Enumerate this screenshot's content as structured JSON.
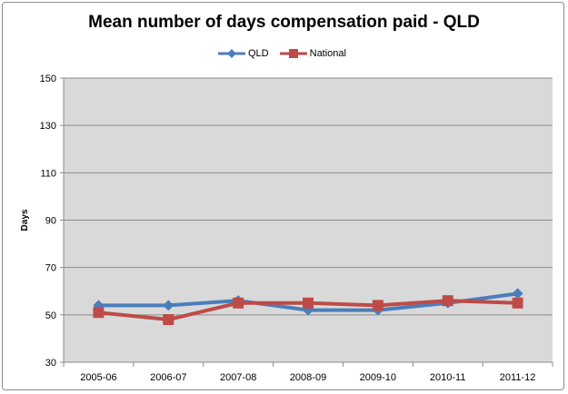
{
  "chart_data": {
    "type": "line",
    "title": "Mean number of days compensation paid - QLD",
    "ylabel": "Days",
    "xlabel": "",
    "categories": [
      "2005-06",
      "2006-07",
      "2007-08",
      "2008-09",
      "2009-10",
      "2010-11",
      "2011-12"
    ],
    "ylim": [
      30,
      150
    ],
    "yticks": [
      30,
      50,
      70,
      90,
      110,
      130,
      150
    ],
    "grid": true,
    "legend_position": "top",
    "series": [
      {
        "name": "QLD",
        "values": [
          54,
          54,
          56,
          52,
          52,
          55,
          59
        ],
        "color": "#4a7ebb",
        "marker": "diamond"
      },
      {
        "name": "National",
        "values": [
          51,
          48,
          55,
          55,
          54,
          56,
          55
        ],
        "color": "#be4b48",
        "marker": "square"
      }
    ],
    "plot_background": "#d9d9d9"
  }
}
